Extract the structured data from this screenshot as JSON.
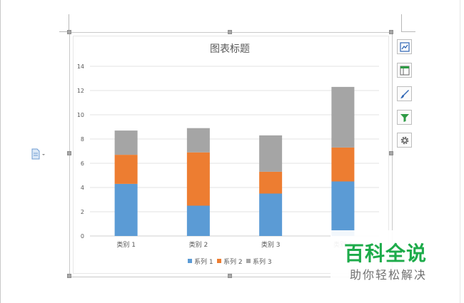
{
  "colors": {
    "series1": "#5b9bd5",
    "series2": "#ed7d31",
    "series3": "#a5a5a5",
    "watermark_green": "#1dab4a"
  },
  "side_toolbar": [
    {
      "icon": "chart-elements-icon"
    },
    {
      "icon": "chart-layout-icon"
    },
    {
      "icon": "chart-style-brush-icon"
    },
    {
      "icon": "chart-filter-icon"
    },
    {
      "icon": "chart-settings-gear-icon"
    }
  ],
  "watermark": {
    "main": "百科全说",
    "sub": "助你轻松解决"
  },
  "chart_data": {
    "type": "bar",
    "stacked": true,
    "title": "图表标题",
    "categories": [
      "类别 1",
      "类别 2",
      "类别 3",
      "类别 4"
    ],
    "series": [
      {
        "name": "系列 1",
        "values": [
          4.3,
          2.5,
          3.5,
          4.5
        ]
      },
      {
        "name": "系列 2",
        "values": [
          2.4,
          4.4,
          1.8,
          2.8
        ]
      },
      {
        "name": "系列 3",
        "values": [
          2.0,
          2.0,
          3.0,
          5.0
        ]
      }
    ],
    "ylim": [
      0,
      14
    ],
    "yticks": [
      "0",
      "2",
      "4",
      "6",
      "8",
      "10",
      "12",
      "14"
    ],
    "grid": true,
    "legend": "bottom"
  }
}
